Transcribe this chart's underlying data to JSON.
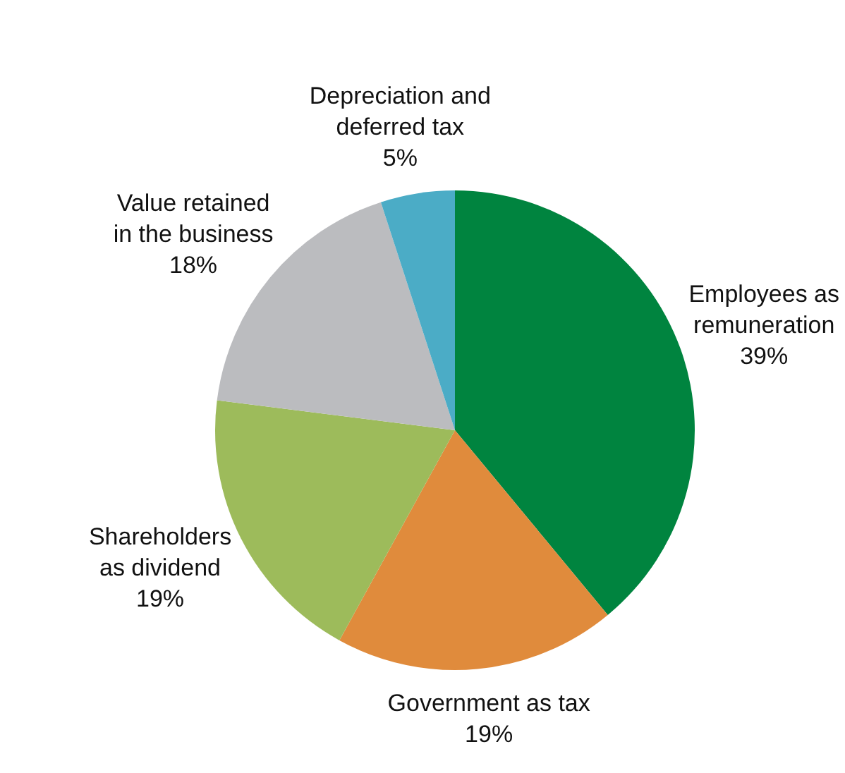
{
  "chart_data": {
    "type": "pie",
    "categories": [
      "Employees as\nremuneration",
      "Government as tax",
      "Shareholders\nas dividend",
      "Value retained\nin the business",
      "Depreciation and\ndeferred tax"
    ],
    "values": [
      39,
      19,
      19,
      18,
      5
    ],
    "colors": [
      "#00843f",
      "#e08b3c",
      "#9dbb5b",
      "#bbbcbf",
      "#4bacc6"
    ],
    "value_labels": [
      "39%",
      "19%",
      "19%",
      "18%",
      "5%"
    ]
  }
}
